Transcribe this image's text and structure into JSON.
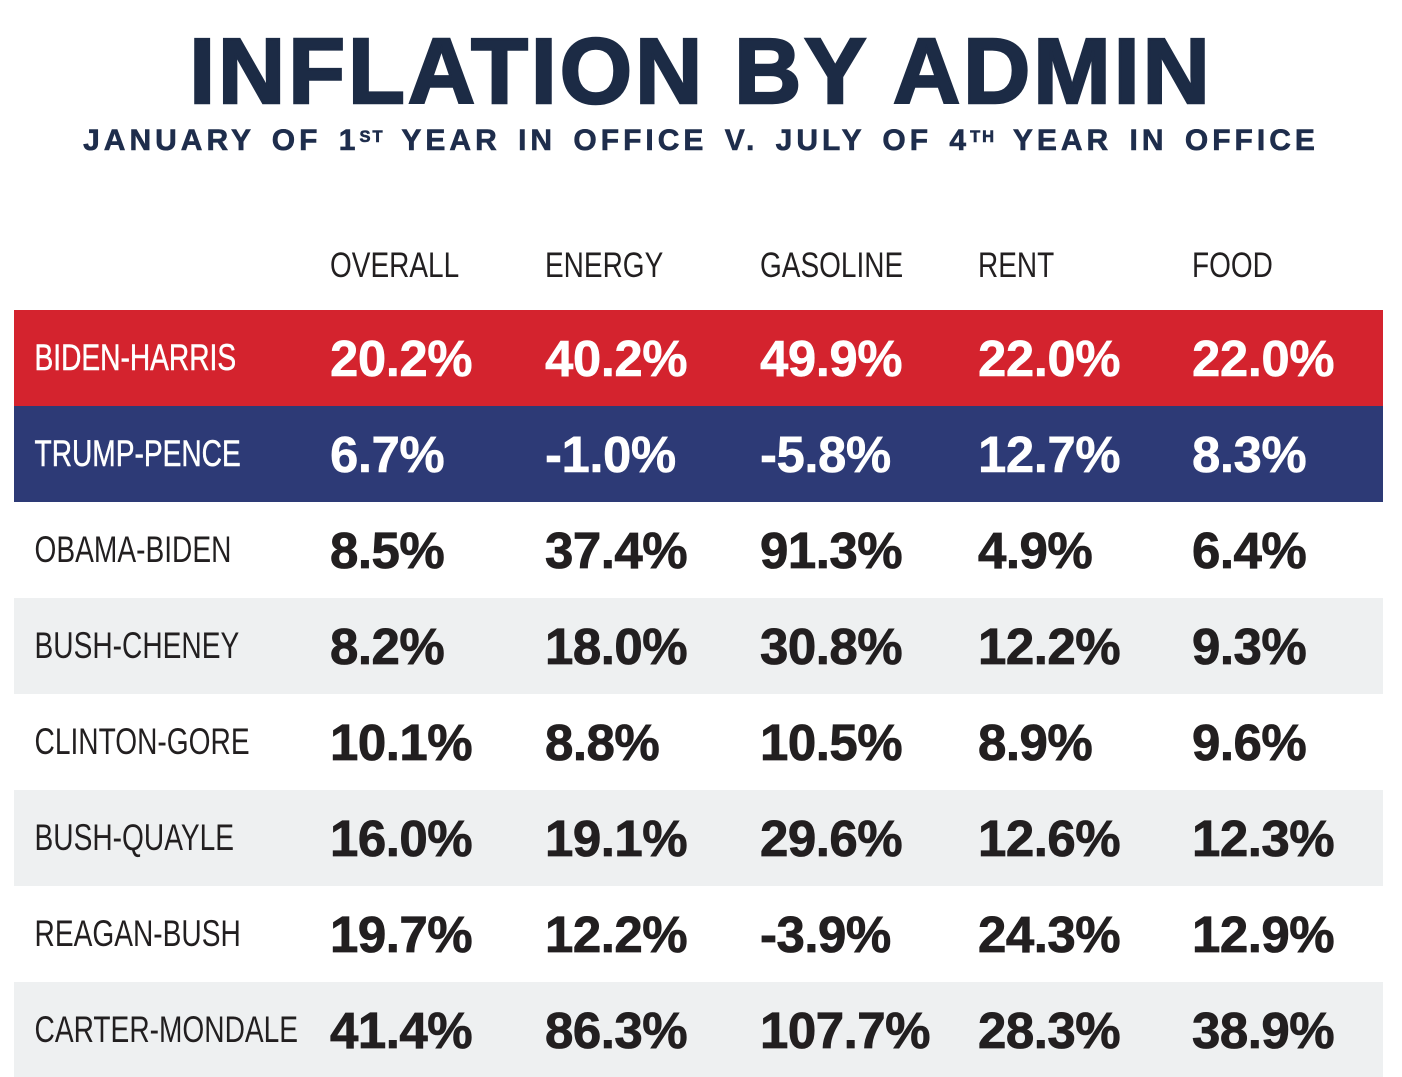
{
  "header": {
    "title": "INFLATION BY ADMIN",
    "subtitle_parts": {
      "p1": "JANUARY OF 1",
      "sup1": "ST",
      "p2": " YEAR IN OFFICE V. JULY OF 4",
      "sup2": "TH",
      "p3": " YEAR IN OFFICE"
    }
  },
  "colors": {
    "title_navy": "#1c2b45",
    "biden_row_red": "#d4232e",
    "trump_row_blue": "#2d3a76",
    "alt_row_gray": "#eef0f1",
    "light_row_text": "#221f20",
    "colored_row_text": "#ffffff"
  },
  "chart_data": {
    "type": "table",
    "title": "INFLATION BY ADMIN",
    "subtitle": "JANUARY OF 1ST YEAR IN OFFICE V. JULY OF 4TH YEAR IN OFFICE",
    "columns": [
      "OVERALL",
      "ENERGY",
      "GASOLINE",
      "RENT",
      "FOOD"
    ],
    "rows": [
      {
        "label": "BIDEN-HARRIS",
        "theme": "red",
        "values": [
          "20.2%",
          "40.2%",
          "49.9%",
          "22.0%",
          "22.0%"
        ]
      },
      {
        "label": "TRUMP-PENCE",
        "theme": "blue",
        "values": [
          "6.7%",
          "-1.0%",
          "-5.8%",
          "12.7%",
          "8.3%"
        ]
      },
      {
        "label": "OBAMA-BIDEN",
        "theme": "white",
        "values": [
          "8.5%",
          "37.4%",
          "91.3%",
          "4.9%",
          "6.4%"
        ]
      },
      {
        "label": "BUSH-CHENEY",
        "theme": "gray",
        "values": [
          "8.2%",
          "18.0%",
          "30.8%",
          "12.2%",
          "9.3%"
        ]
      },
      {
        "label": "CLINTON-GORE",
        "theme": "white",
        "values": [
          "10.1%",
          "8.8%",
          "10.5%",
          "8.9%",
          "9.6%"
        ]
      },
      {
        "label": "BUSH-QUAYLE",
        "theme": "gray",
        "values": [
          "16.0%",
          "19.1%",
          "29.6%",
          "12.6%",
          "12.3%"
        ]
      },
      {
        "label": "REAGAN-BUSH",
        "theme": "white",
        "values": [
          "19.7%",
          "12.2%",
          "-3.9%",
          "24.3%",
          "12.9%"
        ]
      },
      {
        "label": "CARTER-MONDALE",
        "theme": "gray",
        "values": [
          "41.4%",
          "86.3%",
          "107.7%",
          "28.3%",
          "38.9%"
        ]
      }
    ],
    "grid": false,
    "legend_position": "none"
  }
}
